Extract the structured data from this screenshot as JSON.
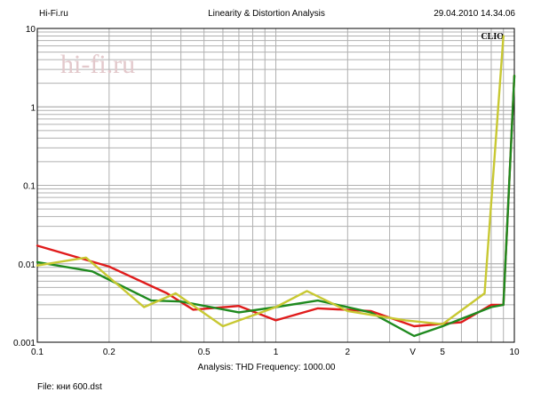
{
  "header": {
    "left": "Hi-Fi.ru",
    "center": "Linearity & Distortion Analysis",
    "right": "29.04.2010 14.34.06"
  },
  "watermark": "hi-fi.ru",
  "brand_badge": "CLIO",
  "footer": {
    "analysis": "Analysis: THD   Frequency: 1000.00",
    "file": "File: кни 600.dst"
  },
  "colors": {
    "grid": "#b0b0b0",
    "red": "#e01b1b",
    "green": "#1f8a1f",
    "yellow": "#c8c832",
    "watermark": "#e3c9cc"
  },
  "chart_data": {
    "type": "line",
    "xscale": "log",
    "yscale": "log",
    "xlim": [
      0.1,
      10
    ],
    "ylim": [
      0.001,
      10
    ],
    "grid": true,
    "x_tick_labels": [
      "0.1",
      "0.2",
      "0.5",
      "1",
      "2",
      "V",
      "5",
      "10"
    ],
    "y_tick_labels": [
      "10",
      "1",
      "0.1",
      "0.01",
      "0.001"
    ],
    "series": [
      {
        "color": "#e01b1b",
        "points": [
          [
            0.1,
            0.017
          ],
          [
            0.2,
            0.0092
          ],
          [
            0.35,
            0.0042
          ],
          [
            0.45,
            0.0026
          ],
          [
            0.7,
            0.0029
          ],
          [
            1.0,
            0.0019
          ],
          [
            1.5,
            0.0027
          ],
          [
            2.5,
            0.0025
          ],
          [
            3.8,
            0.0016
          ],
          [
            6.0,
            0.0018
          ],
          [
            8.0,
            0.003
          ],
          [
            9.0,
            0.003
          ],
          [
            10.0,
            2.5
          ]
        ]
      },
      {
        "color": "#1f8a1f",
        "points": [
          [
            0.1,
            0.0105
          ],
          [
            0.17,
            0.008
          ],
          [
            0.3,
            0.0034
          ],
          [
            0.4,
            0.0033
          ],
          [
            0.7,
            0.0024
          ],
          [
            1.0,
            0.0028
          ],
          [
            1.5,
            0.0034
          ],
          [
            2.5,
            0.0024
          ],
          [
            3.8,
            0.0012
          ],
          [
            5.0,
            0.0016
          ],
          [
            8.0,
            0.0028
          ],
          [
            9.0,
            0.003
          ],
          [
            10.0,
            2.5
          ]
        ]
      },
      {
        "color": "#c8c832",
        "points": [
          [
            0.1,
            0.0095
          ],
          [
            0.16,
            0.012
          ],
          [
            0.28,
            0.0028
          ],
          [
            0.38,
            0.0042
          ],
          [
            0.6,
            0.0016
          ],
          [
            1.0,
            0.0028
          ],
          [
            1.35,
            0.0045
          ],
          [
            2.0,
            0.0025
          ],
          [
            3.5,
            0.0019
          ],
          [
            5.0,
            0.0017
          ],
          [
            7.5,
            0.0042
          ],
          [
            9.0,
            8.0
          ]
        ]
      }
    ]
  }
}
